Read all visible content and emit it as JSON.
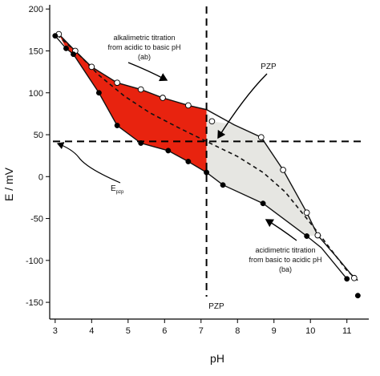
{
  "chart_data": {
    "type": "scatter",
    "xlabel": "pH",
    "ylabel": "E / mV",
    "xlim": [
      2.85,
      11.6
    ],
    "ylim": [
      -170,
      205
    ],
    "x_ticks": [
      3,
      4,
      5,
      6,
      7,
      8,
      9,
      10,
      11
    ],
    "y_ticks": [
      -150,
      -100,
      -50,
      0,
      50,
      100,
      150,
      200
    ],
    "grid": false,
    "legend": "none",
    "colors": {
      "loop_ab": "#e8230f",
      "loop_ba": "#e6e6e2",
      "lines": "#111111"
    },
    "pzp": {
      "pH": 7.15,
      "E": 42
    },
    "series": [
      {
        "marker": "open-circle",
        "points": [
          [
            3.1,
            170
          ],
          [
            3.55,
            150
          ],
          [
            4.0,
            131
          ],
          [
            4.7,
            112
          ],
          [
            5.35,
            104
          ],
          [
            5.95,
            94
          ],
          [
            6.65,
            85
          ],
          [
            7.3,
            66
          ],
          [
            8.65,
            47
          ],
          [
            9.25,
            8
          ],
          [
            9.9,
            -43
          ],
          [
            10.2,
            -70
          ],
          [
            11.2,
            -121
          ]
        ]
      },
      {
        "marker": "filled-circle",
        "points": [
          [
            3.0,
            168
          ],
          [
            3.3,
            153
          ],
          [
            3.5,
            146
          ],
          [
            4.2,
            100
          ],
          [
            4.7,
            61
          ],
          [
            5.35,
            40
          ],
          [
            6.1,
            31
          ],
          [
            6.65,
            18
          ],
          [
            7.15,
            5
          ],
          [
            7.6,
            -10
          ],
          [
            8.7,
            -32
          ],
          [
            9.9,
            -71
          ],
          [
            11.0,
            -122
          ],
          [
            11.3,
            -142
          ]
        ]
      }
    ],
    "annotations": {
      "ab": [
        "alkalimetric titration",
        "from acidic to basic pH",
        "(ab)"
      ],
      "ba": [
        "acidimetric titration",
        "from basic to acidic pH",
        "(ba)"
      ],
      "pzp_top": "PZP",
      "pzp_bottom": "PZP",
      "e_pzp_main": "E",
      "e_pzp_sub": "pzp"
    }
  }
}
